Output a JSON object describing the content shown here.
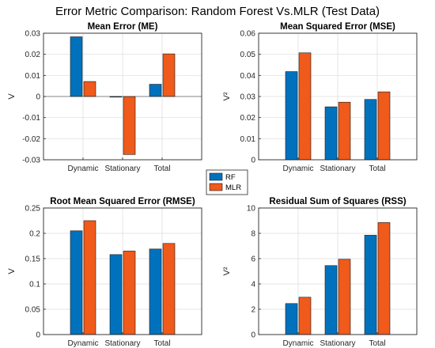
{
  "figure": {
    "title": "Error Metric Comparison: Random Forest Vs.MLR (Test Data)"
  },
  "legend": {
    "placement": "center",
    "items": [
      {
        "label": "RF",
        "color": "#0072BD"
      },
      {
        "label": "MLR",
        "color": "#F05A1A"
      }
    ]
  },
  "chart_data": [
    {
      "type": "bar",
      "title": "Mean Error (ME)",
      "ylabel": "V",
      "categories": [
        "Dynamic",
        "Stationary",
        "Total"
      ],
      "ylim": [
        -0.03,
        0.03
      ],
      "yticks": [
        -0.03,
        -0.02,
        -0.01,
        0,
        0.01,
        0.02,
        0.03
      ],
      "ytick_labels": [
        "-0.03",
        "-0.02",
        "-0.01",
        "0",
        "0.01",
        "0.02",
        "0.03"
      ],
      "grid": true,
      "series": [
        {
          "name": "RF",
          "values": [
            0.0283,
            -0.0003,
            0.0058
          ]
        },
        {
          "name": "MLR",
          "values": [
            0.0071,
            -0.0275,
            0.0202
          ]
        }
      ]
    },
    {
      "type": "bar",
      "title": "Mean Squared Error (MSE)",
      "ylabel": "V²",
      "categories": [
        "Dynamic",
        "Stationary",
        "Total"
      ],
      "ylim": [
        0,
        0.06
      ],
      "yticks": [
        0,
        0.01,
        0.02,
        0.03,
        0.04,
        0.05,
        0.06
      ],
      "ytick_labels": [
        "0",
        "0.01",
        "0.02",
        "0.03",
        "0.04",
        "0.05",
        "0.06"
      ],
      "grid": true,
      "series": [
        {
          "name": "RF",
          "values": [
            0.0418,
            0.0251,
            0.0286
          ]
        },
        {
          "name": "MLR",
          "values": [
            0.0507,
            0.0273,
            0.0322
          ]
        }
      ]
    },
    {
      "type": "bar",
      "title": "Root Mean Squared Error (RMSE)",
      "ylabel": "V",
      "categories": [
        "Dynamic",
        "Stationary",
        "Total"
      ],
      "ylim": [
        0,
        0.25
      ],
      "yticks": [
        0,
        0.05,
        0.1,
        0.15,
        0.2,
        0.25
      ],
      "ytick_labels": [
        "0",
        "0.05",
        "0.1",
        "0.15",
        "0.2",
        "0.25"
      ],
      "grid": true,
      "series": [
        {
          "name": "RF",
          "values": [
            0.205,
            0.158,
            0.169
          ]
        },
        {
          "name": "MLR",
          "values": [
            0.225,
            0.165,
            0.18
          ]
        }
      ]
    },
    {
      "type": "bar",
      "title": "Residual Sum of Squares (RSS)",
      "ylabel": "V²",
      "categories": [
        "Dynamic",
        "Stationary",
        "Total"
      ],
      "ylim": [
        0,
        10
      ],
      "yticks": [
        0,
        2,
        4,
        6,
        8,
        10
      ],
      "ytick_labels": [
        "0",
        "2",
        "4",
        "6",
        "8",
        "10"
      ],
      "grid": true,
      "series": [
        {
          "name": "RF",
          "values": [
            2.45,
            5.45,
            7.85
          ]
        },
        {
          "name": "MLR",
          "values": [
            2.95,
            5.95,
            8.85
          ]
        }
      ]
    }
  ]
}
